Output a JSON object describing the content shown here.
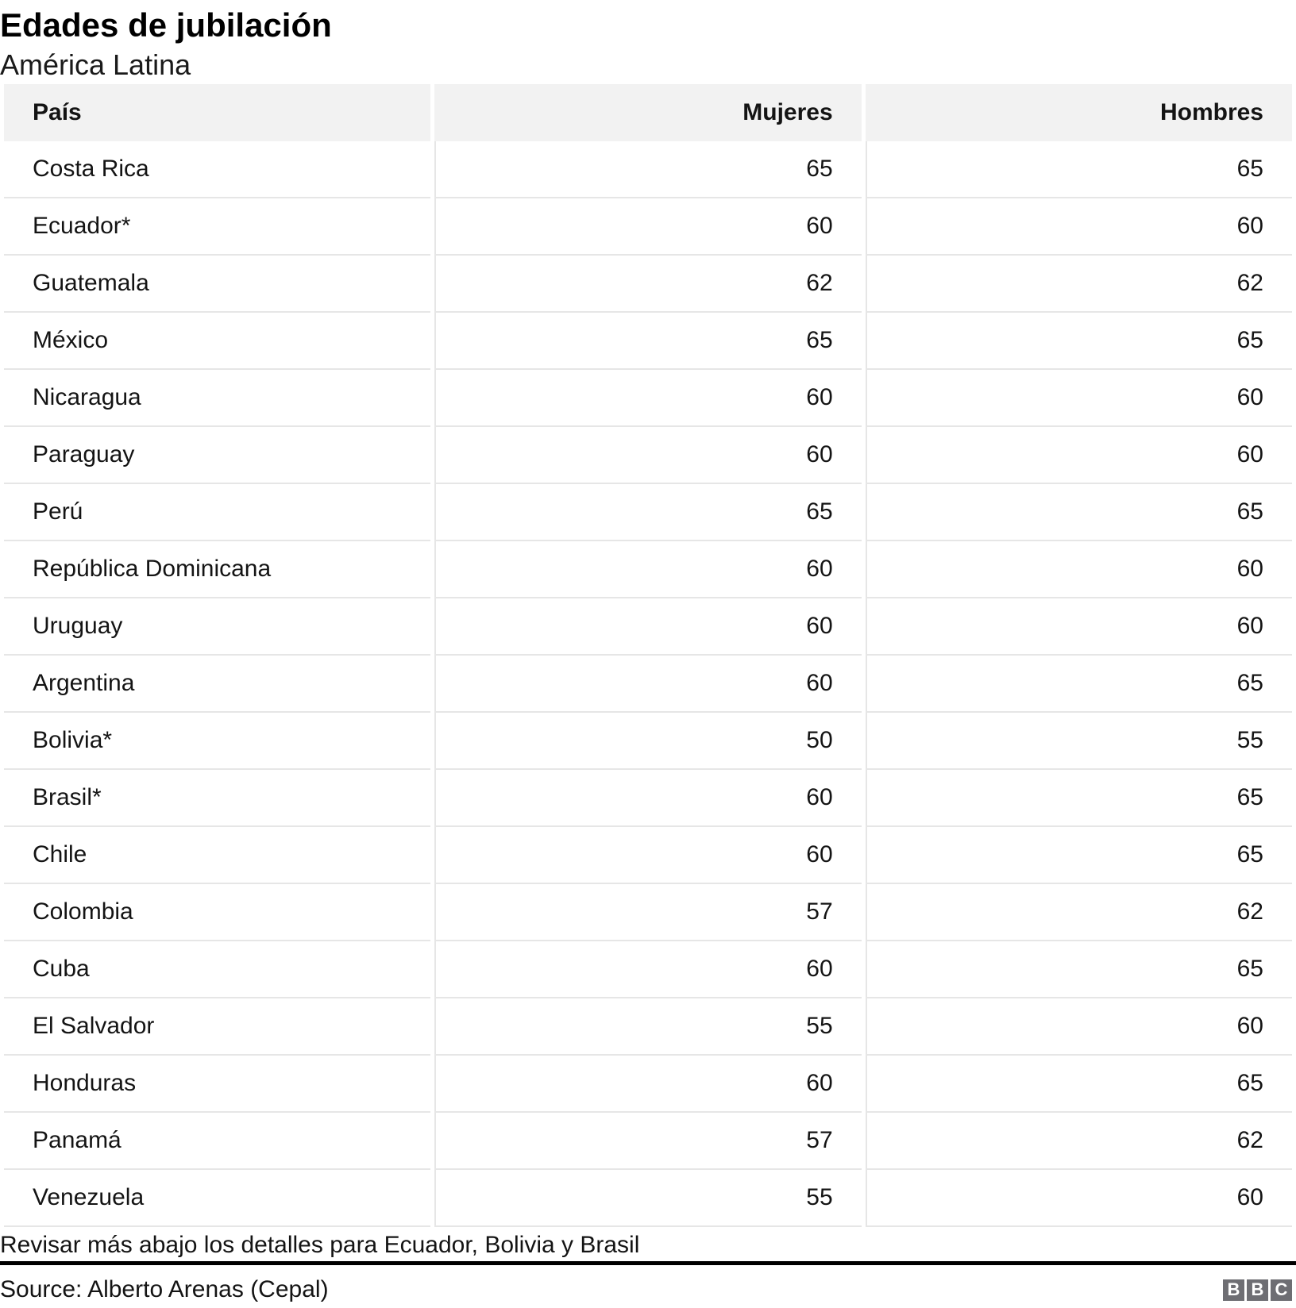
{
  "header": {
    "title": "Edades de jubilación",
    "subtitle": "América Latina"
  },
  "chart_data": {
    "type": "table",
    "title": "Edades de jubilación",
    "subtitle": "América Latina",
    "columns": [
      "País",
      "Mujeres",
      "Hombres"
    ],
    "rows": [
      [
        "Costa Rica",
        65,
        65
      ],
      [
        "Ecuador*",
        60,
        60
      ],
      [
        "Guatemala",
        62,
        62
      ],
      [
        "México",
        65,
        65
      ],
      [
        "Nicaragua",
        60,
        60
      ],
      [
        "Paraguay",
        60,
        60
      ],
      [
        "Perú",
        65,
        65
      ],
      [
        "República Dominicana",
        60,
        60
      ],
      [
        "Uruguay",
        60,
        60
      ],
      [
        "Argentina",
        60,
        65
      ],
      [
        "Bolivia*",
        50,
        55
      ],
      [
        "Brasil*",
        60,
        65
      ],
      [
        "Chile",
        60,
        65
      ],
      [
        "Colombia",
        57,
        62
      ],
      [
        "Cuba",
        60,
        65
      ],
      [
        "El Salvador",
        55,
        60
      ],
      [
        "Honduras",
        60,
        65
      ],
      [
        "Panamá",
        57,
        62
      ],
      [
        "Venezuela",
        55,
        60
      ]
    ],
    "footnote": "Revisar más abajo los detalles para Ecuador, Bolivia y Brasil",
    "source": "Source: Alberto Arenas (Cepal)",
    "layout_hints": {
      "header_background": "#f2f2f2",
      "row_border_color": "#e6e6e6",
      "rule_color": "#000000",
      "logo_block_color": "#6e6e73",
      "value_alignment": "right"
    }
  },
  "footer": {
    "footnote": "Revisar más abajo los detalles para Ecuador, Bolivia y Brasil",
    "source": "Source: Alberto Arenas (Cepal)",
    "logo_letters": [
      "B",
      "B",
      "C"
    ]
  }
}
